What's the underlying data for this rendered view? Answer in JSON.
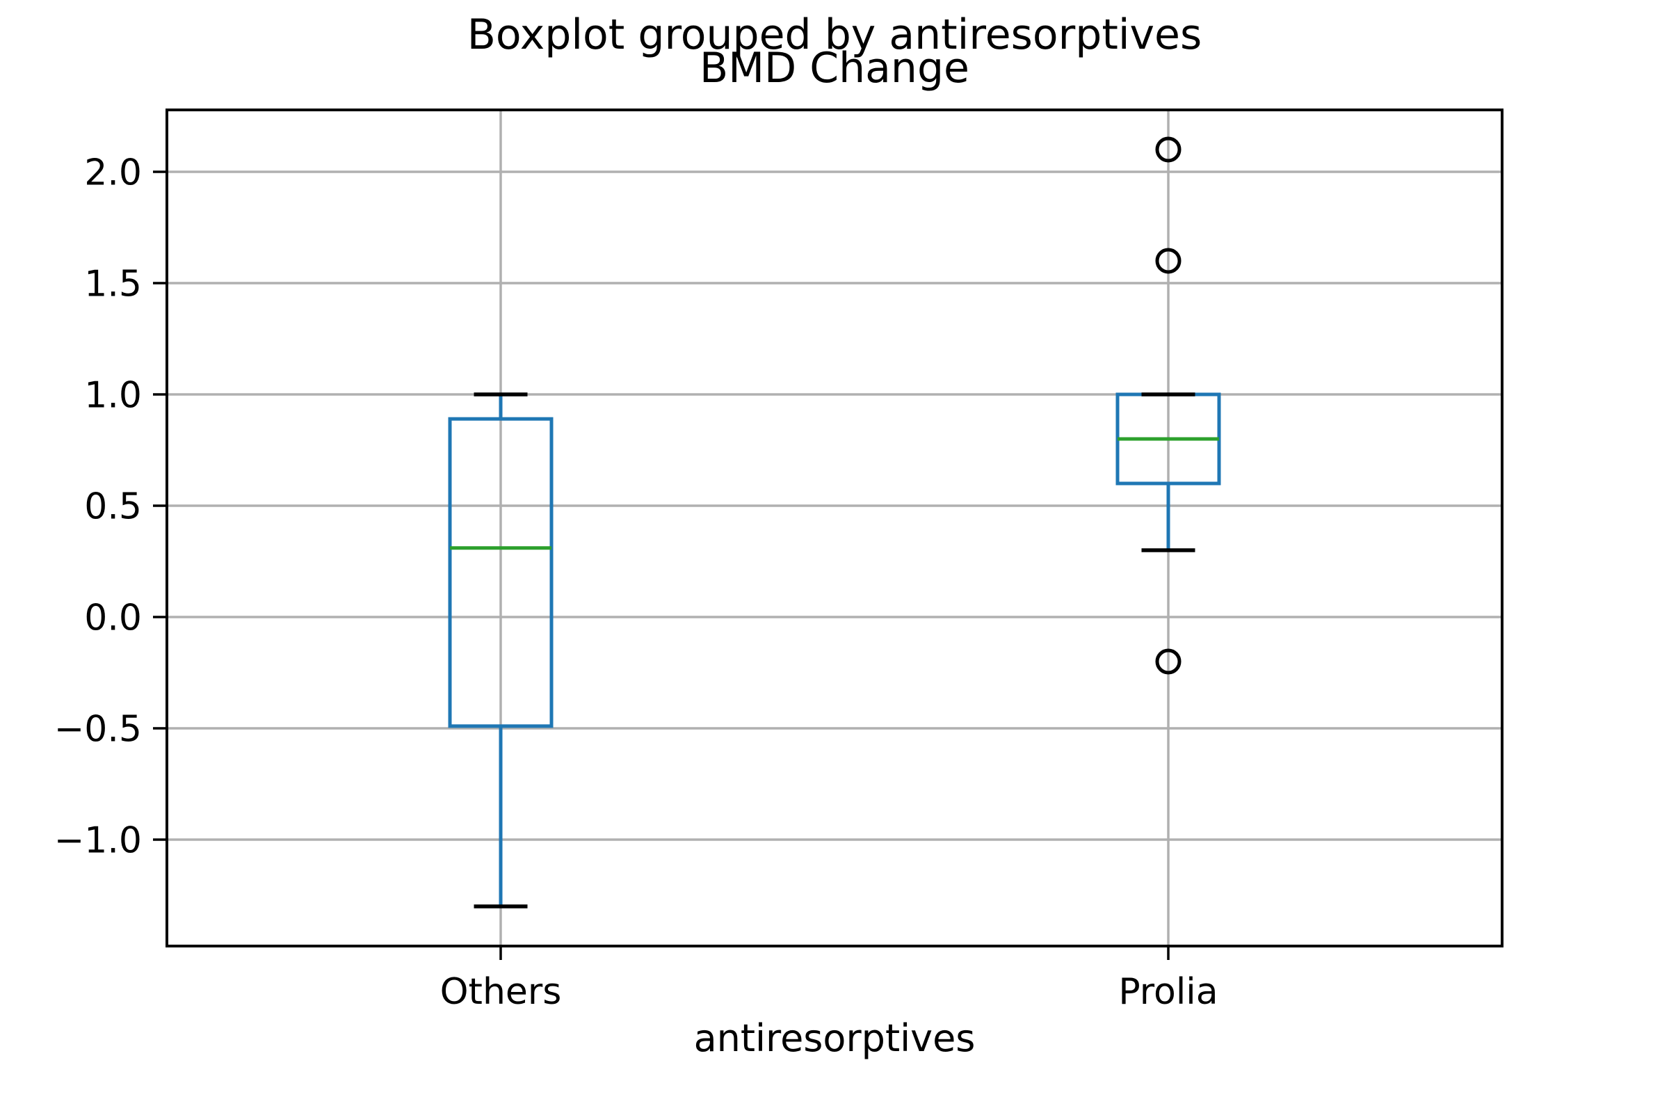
{
  "figure": {
    "suptitle": "Boxplot grouped by antiresorptives",
    "title": "BMD Change",
    "xlabel": "antiresorptives"
  },
  "chart_data": {
    "type": "boxplot",
    "title": "BMD Change",
    "suptitle": "Boxplot grouped by antiresorptives",
    "xlabel": "antiresorptives",
    "ylabel": "",
    "categories": [
      "Others",
      "Prolia"
    ],
    "series": [
      {
        "name": "Others",
        "whisker_low": -1.3,
        "q1": -0.49,
        "median": 0.31,
        "q3": 0.89,
        "whisker_high": 1.0,
        "outliers": []
      },
      {
        "name": "Prolia",
        "whisker_low": 0.3,
        "q1": 0.6,
        "median": 0.8,
        "q3": 1.0,
        "whisker_high": 1.0,
        "outliers": [
          2.1,
          1.6,
          -0.2
        ]
      }
    ],
    "yticks": [
      2.0,
      1.5,
      1.0,
      0.5,
      0.0,
      -0.5,
      -1.0
    ],
    "ytick_labels": [
      "2.0",
      "1.5",
      "1.0",
      "0.5",
      "0.0",
      "−0.5",
      "−1.0"
    ],
    "ylim": [
      -1.478,
      2.278
    ],
    "grid": true,
    "legend": "none",
    "colors": {
      "box": "#1f77b4",
      "median": "#2ca02c",
      "whisker": "#1f77b4",
      "cap": "#000000",
      "flier": "#000000",
      "grid": "#b0b0b0",
      "spine": "#000000",
      "background": "#ffffff"
    }
  }
}
